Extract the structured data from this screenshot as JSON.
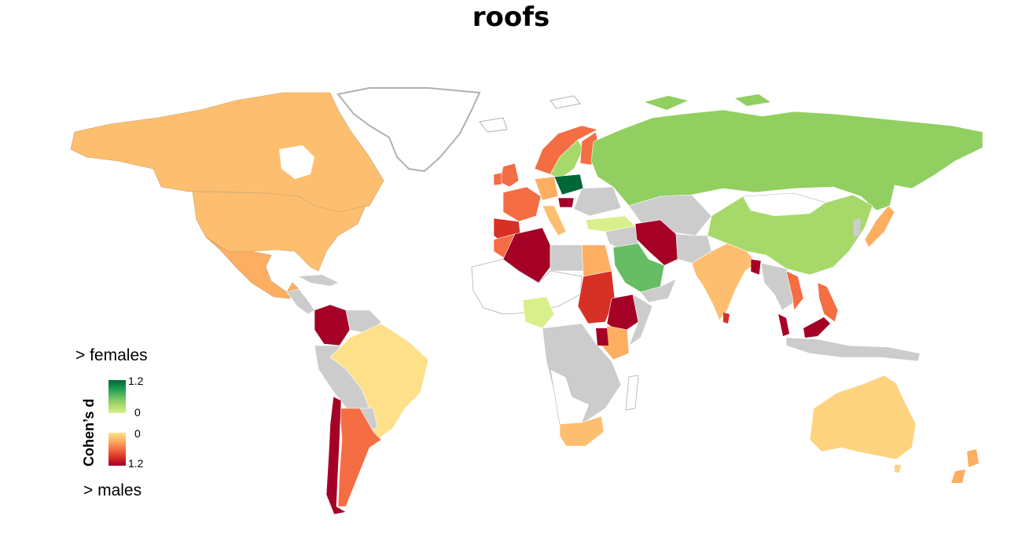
{
  "title": "roofs",
  "legend": {
    "top_label": "> females",
    "bottom_label": "> males",
    "axis_title": "Cohen’s d",
    "green_max": "1.2",
    "green_min": "0",
    "red_min": "0",
    "red_max": "1.2"
  },
  "colors": {
    "no_data": "#cccccc",
    "outline": "#a0a0a0",
    "scale_female": [
      "#d9ef8b",
      "#a6d96a",
      "#66bd63",
      "#1a9850",
      "#006837"
    ],
    "scale_male": [
      "#fee08b",
      "#fdae61",
      "#f46d43",
      "#d73027",
      "#a50026"
    ]
  },
  "countries": [
    {
      "name": "Canada",
      "side": "males",
      "level": "low"
    },
    {
      "name": "United States",
      "side": "males",
      "level": "low"
    },
    {
      "name": "Mexico",
      "side": "males",
      "level": "low-mid"
    },
    {
      "name": "Colombia",
      "side": "males",
      "level": "high"
    },
    {
      "name": "Brazil",
      "side": "males",
      "level": "very-low"
    },
    {
      "name": "Chile",
      "side": "males",
      "level": "high"
    },
    {
      "name": "Argentina",
      "side": "males",
      "level": "mid"
    },
    {
      "name": "Algeria",
      "side": "males",
      "level": "high"
    },
    {
      "name": "Egypt",
      "side": "males",
      "level": "low-mid"
    },
    {
      "name": "Sudan",
      "side": "males",
      "level": "mid-high"
    },
    {
      "name": "Ethiopia",
      "side": "males",
      "level": "high"
    },
    {
      "name": "South Africa",
      "side": "males",
      "level": "low"
    },
    {
      "name": "Iran",
      "side": "males",
      "level": "high"
    },
    {
      "name": "India",
      "side": "males",
      "level": "low"
    },
    {
      "name": "Bangladesh",
      "side": "males",
      "level": "high"
    },
    {
      "name": "Malaysia",
      "side": "males",
      "level": "high"
    },
    {
      "name": "Philippines",
      "side": "males",
      "level": "mid"
    },
    {
      "name": "Japan",
      "side": "males",
      "level": "low"
    },
    {
      "name": "Australia",
      "side": "males",
      "level": "very-low"
    },
    {
      "name": "New Zealand",
      "side": "males",
      "level": "low-mid"
    },
    {
      "name": "Russia",
      "side": "females",
      "level": "mid"
    },
    {
      "name": "China",
      "side": "females",
      "level": "low-mid"
    },
    {
      "name": "Saudi Arabia",
      "side": "females",
      "level": "mid-high"
    },
    {
      "name": "Nigeria",
      "side": "females",
      "level": "low"
    },
    {
      "name": "Poland",
      "side": "females",
      "level": "high"
    },
    {
      "name": "Turkey",
      "side": "females",
      "level": "very-low"
    }
  ]
}
